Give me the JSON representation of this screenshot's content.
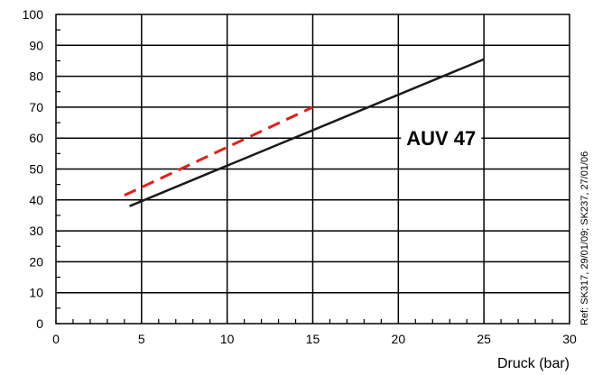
{
  "chart_data": {
    "type": "line",
    "xlabel": "Druck (bar)",
    "ylabel": "",
    "xlim": [
      0,
      30
    ],
    "ylim": [
      0,
      100
    ],
    "x_ticks": [
      0,
      5,
      10,
      15,
      20,
      25,
      30
    ],
    "y_ticks": [
      0,
      10,
      20,
      30,
      40,
      50,
      60,
      70,
      80,
      90,
      100
    ],
    "x_tick_labels": [
      "0",
      "5",
      "10",
      "15",
      "20",
      "25",
      "30"
    ],
    "y_tick_labels": [
      "0",
      "10",
      "20",
      "30",
      "40",
      "50",
      "60",
      "70",
      "80",
      "90",
      "100"
    ],
    "grid": true,
    "series": [
      {
        "x": [
          4.3,
          25
        ],
        "y": [
          38,
          85.5
        ],
        "color": "#1a1a1a",
        "style": "solid"
      },
      {
        "x": [
          4,
          15
        ],
        "y": [
          41.5,
          70
        ],
        "color": "#e0201a",
        "style": "dashed"
      }
    ],
    "annotation": {
      "text": "AUV 47",
      "x": 22.5,
      "y": 60
    },
    "reference": "Ref: SK317, 29/01/09; SK237, 27/01/06"
  }
}
